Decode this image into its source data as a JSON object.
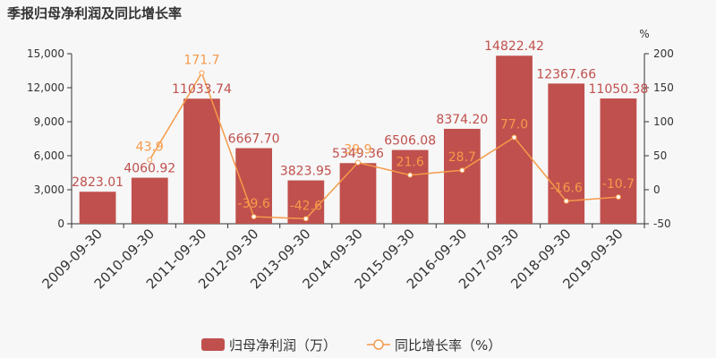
{
  "chart_data": {
    "type": "bar",
    "title": "季报归母净利润及同比增长率",
    "categories": [
      "2009-09-30",
      "2010-09-30",
      "2011-09-30",
      "2012-09-30",
      "2013-09-30",
      "2014-09-30",
      "2015-09-30",
      "2016-09-30",
      "2017-09-30",
      "2018-09-30",
      "2019-09-30"
    ],
    "series": [
      {
        "name": "归母净利润（万）",
        "type": "bar",
        "axis": "left",
        "values": [
          2823.01,
          4060.92,
          11033.74,
          6667.7,
          3823.95,
          5349.36,
          6506.08,
          8374.2,
          14822.42,
          12367.66,
          11050.38
        ],
        "labels": [
          "2823.01",
          "4060.92",
          "11033.74",
          "6667.70",
          "3823.95",
          "5349.36",
          "6506.08",
          "8374.20",
          "14822.42",
          "12367.66",
          "11050.38"
        ],
        "color": "#c0504d"
      },
      {
        "name": "同比增长率（%）",
        "type": "line",
        "axis": "right",
        "values": [
          null,
          43.9,
          171.7,
          -39.6,
          -42.6,
          39.9,
          21.6,
          28.7,
          77.0,
          -16.6,
          -10.7
        ],
        "labels": [
          "",
          "43.9",
          "171.7",
          "-39.6",
          "-42.6",
          "39.9",
          "21.6",
          "28.7",
          "77.0",
          "-16.6",
          "-10.7"
        ],
        "color": "#f59a4a"
      }
    ],
    "y_left": {
      "ylim": [
        0,
        15000
      ],
      "ticks": [
        "0",
        "3,000",
        "6,000",
        "9,000",
        "12,000",
        "15,000"
      ]
    },
    "y_right": {
      "ylim": [
        -50,
        200
      ],
      "ticks": [
        "-50",
        "0",
        "50",
        "100",
        "150",
        "200"
      ],
      "unit": "%"
    },
    "legend": {
      "placement": "bottom"
    },
    "grid": false
  }
}
